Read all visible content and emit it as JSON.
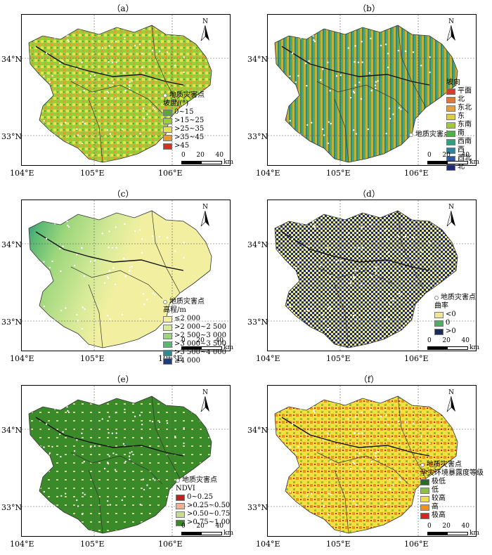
{
  "common": {
    "lat_top": "34°N",
    "lat_bottom": "33°N",
    "lon_labels": [
      "104°E",
      "105°E",
      "106°E"
    ],
    "north": "N",
    "scale_ticks": [
      "0",
      "20",
      "40"
    ],
    "scale_unit": "km",
    "hazard_label": "地质灾害点"
  },
  "panels": [
    {
      "id": "a",
      "label": "（a）",
      "legend_title": "坡度/(°)",
      "items": [
        {
          "label": "0~15",
          "color": "#5aa832"
        },
        {
          "label": ">15~25",
          "color": "#9ccc3c"
        },
        {
          "label": ">25~35",
          "color": "#e8e04c"
        },
        {
          "label": ">35~45",
          "color": "#e89a30"
        },
        {
          "label": ">45",
          "color": "#d83020"
        }
      ]
    },
    {
      "id": "b",
      "label": "（b）",
      "legend_title": "坡向",
      "items": [
        {
          "label": "平面",
          "color": "#d04030"
        },
        {
          "label": "北",
          "color": "#e07838"
        },
        {
          "label": "东北",
          "color": "#e0a040"
        },
        {
          "label": "东",
          "color": "#d8d040"
        },
        {
          "label": "东南",
          "color": "#a0c840"
        },
        {
          "label": "南",
          "color": "#50b048"
        },
        {
          "label": "西南",
          "color": "#30a080"
        },
        {
          "label": "西",
          "color": "#3080a0"
        },
        {
          "label": "西北",
          "color": "#3058a0"
        },
        {
          "label": "北",
          "color": "#202870"
        }
      ]
    },
    {
      "id": "c",
      "label": "（c）",
      "legend_title": "高程/m",
      "items": [
        {
          "label": "≤2 000",
          "color": "#f2f0a0"
        },
        {
          "label": ">2 000~2 500",
          "color": "#d6ea98"
        },
        {
          "label": ">2 500~3 000",
          "color": "#9cd67c"
        },
        {
          "label": ">3 000~3 500",
          "color": "#58b874"
        },
        {
          "label": ">3 500~4 000",
          "color": "#2c8c8c"
        },
        {
          "label": "≥4 000",
          "color": "#1c3c7c"
        }
      ]
    },
    {
      "id": "d",
      "label": "（d）",
      "legend_title": "曲率",
      "items": [
        {
          "label": "<0",
          "color": "#f0e890"
        },
        {
          "label": "0",
          "color": "#4cb060"
        },
        {
          "label": ">0",
          "color": "#1c2c58"
        }
      ]
    },
    {
      "id": "e",
      "label": "（e）",
      "legend_title": "NDVI",
      "items": [
        {
          "label": "0~0.25",
          "color": "#c02020"
        },
        {
          "label": ">0.25~0.50",
          "color": "#f0b090"
        },
        {
          "label": ">0.50~0.75",
          "color": "#c8dc90"
        },
        {
          "label": ">0.75~1.00",
          "color": "#3a8a2a"
        }
      ]
    },
    {
      "id": "f",
      "label": "（f）",
      "legend_title": "孕灾环境暴露度等级",
      "items": [
        {
          "label": "极低",
          "color": "#2a6a2a"
        },
        {
          "label": "低",
          "color": "#8cc040"
        },
        {
          "label": "较高",
          "color": "#f0e040"
        },
        {
          "label": "高",
          "color": "#f09020"
        },
        {
          "label": "极高",
          "color": "#e02020"
        }
      ]
    }
  ]
}
